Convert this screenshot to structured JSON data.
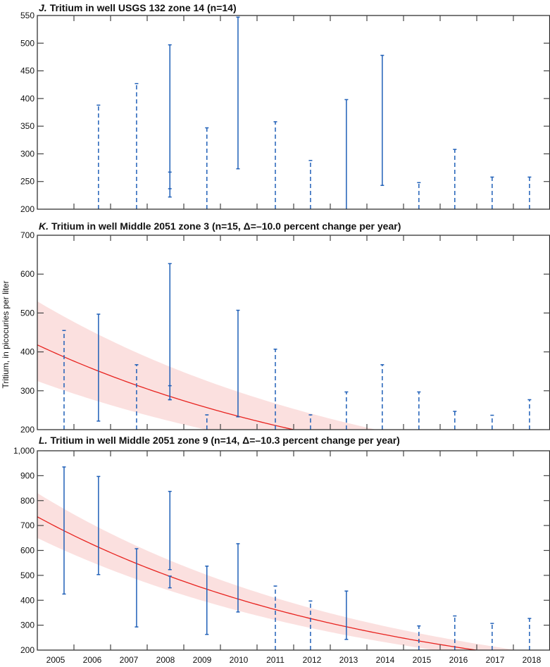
{
  "y_axis_label": "Tritium, in picocuries per liter",
  "chart_data": [
    {
      "type": "errorbar",
      "letter": "J.",
      "title": "Tritium in well USGS 132 zone 14 (n=14)",
      "ylim": [
        200,
        550
      ],
      "ystep": 50,
      "yticks": [
        "200",
        "250",
        "300",
        "350",
        "400",
        "450",
        "500",
        "550"
      ],
      "xlim": [
        2005,
        2019
      ],
      "xticks": [
        "2005",
        "2006",
        "2007",
        "2008",
        "2009",
        "2010",
        "2011",
        "2012",
        "2013",
        "2014",
        "2015",
        "2016",
        "2017",
        "2018"
      ],
      "intervals": [
        {
          "x": 2006.67,
          "low": 200,
          "high": 388,
          "style": "dashed"
        },
        {
          "x": 2007.71,
          "low": 200,
          "high": 427,
          "style": "dashed"
        },
        {
          "x": 2008.62,
          "low": 237,
          "high": 497,
          "style": "solid"
        },
        {
          "x": 2008.62,
          "low": 222,
          "high": 267,
          "style": "solid"
        },
        {
          "x": 2009.63,
          "low": 200,
          "high": 347,
          "style": "dashed"
        },
        {
          "x": 2010.48,
          "low": 273,
          "high": 547,
          "style": "solid"
        },
        {
          "x": 2011.5,
          "low": 200,
          "high": 358,
          "style": "dashed"
        },
        {
          "x": 2012.46,
          "low": 200,
          "high": 288,
          "style": "dashed"
        },
        {
          "x": 2013.44,
          "low": 200,
          "high": 398,
          "style": "solid"
        },
        {
          "x": 2014.42,
          "low": 243,
          "high": 478,
          "style": "solid"
        },
        {
          "x": 2015.42,
          "low": 200,
          "high": 248,
          "style": "dashed"
        },
        {
          "x": 2016.4,
          "low": 200,
          "high": 308,
          "style": "dashed"
        },
        {
          "x": 2017.42,
          "low": 200,
          "high": 258,
          "style": "dashed"
        },
        {
          "x": 2018.44,
          "low": 200,
          "high": 258,
          "style": "dashed"
        }
      ],
      "trend": null
    },
    {
      "type": "errorbar",
      "letter": "K.",
      "title": "Tritium in well Middle 2051 zone 3 (n=15, Δ=–10.0 percent change per year)",
      "ylim": [
        200,
        700
      ],
      "ystep": 100,
      "yticks": [
        "200",
        "300",
        "400",
        "500",
        "600",
        "700"
      ],
      "xlim": [
        2005,
        2019
      ],
      "xticks": [
        "2005",
        "2006",
        "2007",
        "2008",
        "2009",
        "2010",
        "2011",
        "2012",
        "2013",
        "2014",
        "2015",
        "2016",
        "2017",
        "2018"
      ],
      "intervals": [
        {
          "x": 2005.73,
          "low": 200,
          "high": 455,
          "style": "dashed"
        },
        {
          "x": 2006.67,
          "low": 222,
          "high": 497,
          "style": "solid"
        },
        {
          "x": 2007.71,
          "low": 200,
          "high": 367,
          "style": "dashed"
        },
        {
          "x": 2008.62,
          "low": 277,
          "high": 627,
          "style": "solid"
        },
        {
          "x": 2008.62,
          "low": 277,
          "high": 313,
          "style": "solid"
        },
        {
          "x": 2009.63,
          "low": 200,
          "high": 238,
          "style": "dashed"
        },
        {
          "x": 2010.48,
          "low": 233,
          "high": 507,
          "style": "solid"
        },
        {
          "x": 2011.5,
          "low": 200,
          "high": 407,
          "style": "dashed"
        },
        {
          "x": 2012.46,
          "low": 200,
          "high": 238,
          "style": "dashed"
        },
        {
          "x": 2013.44,
          "low": 200,
          "high": 297,
          "style": "dashed"
        },
        {
          "x": 2014.42,
          "low": 200,
          "high": 367,
          "style": "dashed"
        },
        {
          "x": 2015.42,
          "low": 200,
          "high": 297,
          "style": "dashed"
        },
        {
          "x": 2016.4,
          "low": 200,
          "high": 247,
          "style": "dashed"
        },
        {
          "x": 2017.42,
          "low": 200,
          "high": 237,
          "style": "dashed"
        },
        {
          "x": 2018.44,
          "low": 200,
          "high": 277,
          "style": "dashed"
        }
      ],
      "trend": {
        "start": 418,
        "upper_start": 530,
        "lower_start": 325,
        "pct_change_per_year": -10.0
      }
    },
    {
      "type": "errorbar",
      "letter": "L.",
      "title": "Tritium in well Middle 2051 zone 9 (n=14, Δ=–10.3 percent change per year)",
      "ylim": [
        200,
        1000
      ],
      "ystep": 100,
      "yticks": [
        "200",
        "300",
        "400",
        "500",
        "600",
        "700",
        "800",
        "900",
        "1,000"
      ],
      "xlim": [
        2005,
        2019
      ],
      "xticks": [
        "2005",
        "2006",
        "2007",
        "2008",
        "2009",
        "2010",
        "2011",
        "2012",
        "2013",
        "2014",
        "2015",
        "2016",
        "2017",
        "2018"
      ],
      "intervals": [
        {
          "x": 2005.73,
          "low": 425,
          "high": 935,
          "style": "solid"
        },
        {
          "x": 2006.67,
          "low": 503,
          "high": 897,
          "style": "solid"
        },
        {
          "x": 2007.71,
          "low": 293,
          "high": 607,
          "style": "solid"
        },
        {
          "x": 2008.62,
          "low": 523,
          "high": 837,
          "style": "solid"
        },
        {
          "x": 2008.62,
          "low": 450,
          "high": 497,
          "style": "solid"
        },
        {
          "x": 2009.63,
          "low": 263,
          "high": 537,
          "style": "solid"
        },
        {
          "x": 2010.48,
          "low": 353,
          "high": 627,
          "style": "solid"
        },
        {
          "x": 2011.5,
          "low": 200,
          "high": 457,
          "style": "dashed"
        },
        {
          "x": 2012.46,
          "low": 200,
          "high": 397,
          "style": "dashed"
        },
        {
          "x": 2013.44,
          "low": 243,
          "high": 437,
          "style": "solid"
        },
        {
          "x": 2015.42,
          "low": 200,
          "high": 297,
          "style": "dashed"
        },
        {
          "x": 2016.4,
          "low": 200,
          "high": 337,
          "style": "dashed"
        },
        {
          "x": 2017.42,
          "low": 200,
          "high": 307,
          "style": "dashed"
        },
        {
          "x": 2018.44,
          "low": 200,
          "high": 327,
          "style": "dashed"
        }
      ],
      "trend": {
        "start": 735,
        "upper_start": 830,
        "lower_start": 650,
        "pct_change_per_year": -10.3
      }
    }
  ],
  "colors": {
    "interval": "#2060b8",
    "trend": "#e8231f",
    "band": "#fbe0df",
    "axis": "#222222"
  }
}
